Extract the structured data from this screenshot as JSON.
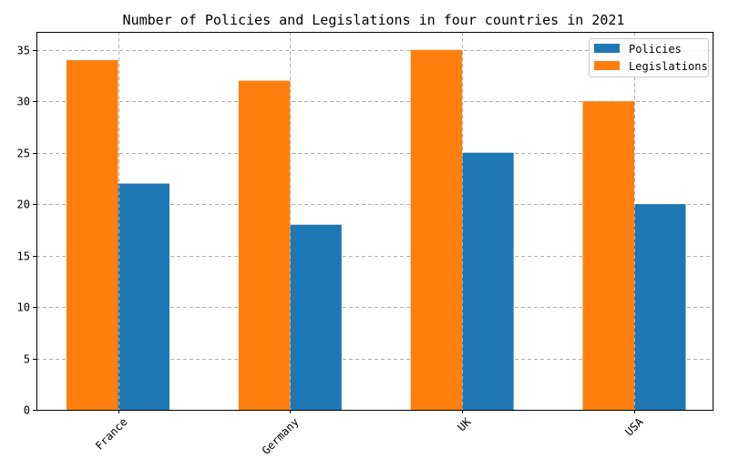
{
  "chart_data": {
    "type": "bar",
    "title": "Number of Policies and Legislations in four countries in 2021",
    "xlabel": "",
    "ylabel": "",
    "categories": [
      "France",
      "Germany",
      "UK",
      "USA"
    ],
    "series": [
      {
        "name": "Policies",
        "values": [
          22,
          18,
          25,
          20
        ],
        "color": "#1f77b4"
      },
      {
        "name": "Legislations",
        "values": [
          34,
          32,
          35,
          30
        ],
        "color": "#ff7f0e"
      }
    ],
    "ylim": [
      0,
      36.75
    ],
    "yticks": [
      0,
      5,
      10,
      15,
      20,
      25,
      30,
      35
    ],
    "grid": true,
    "legend_position": "top-right"
  }
}
